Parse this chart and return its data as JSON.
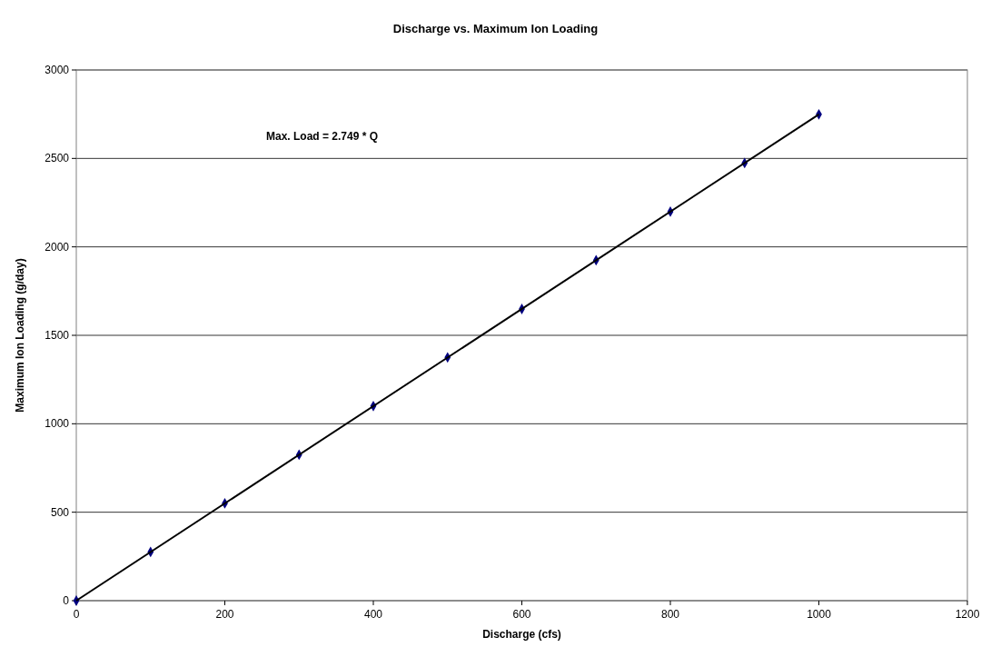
{
  "chart_data": {
    "type": "scatter",
    "title": "Discharge vs. Maximum Ion Loading",
    "xlabel": "Discharge (cfs)",
    "ylabel": "Maximum Ion Loading (g/day)",
    "x": [
      0,
      100,
      200,
      300,
      400,
      500,
      600,
      700,
      800,
      900,
      1000
    ],
    "series": [
      {
        "color": "#000080",
        "marker": "diamond",
        "values": [
          0,
          275,
          550,
          825,
          1100,
          1375,
          1649,
          1924,
          2199,
          2474,
          2749
        ]
      },
      {
        "type": "line",
        "color": "#000000",
        "marker": "none",
        "x": [
          0,
          1000
        ],
        "values": [
          0,
          2749
        ]
      }
    ],
    "xlim": [
      0,
      1200
    ],
    "xticks": [
      0,
      200,
      400,
      600,
      800,
      1000,
      1200
    ],
    "ylim": [
      0,
      3000
    ],
    "yticks": [
      0,
      500,
      1000,
      1500,
      2000,
      2500,
      3000
    ],
    "grid": "y",
    "annotations": [
      "Max. Load = 2.749 * Q"
    ]
  }
}
